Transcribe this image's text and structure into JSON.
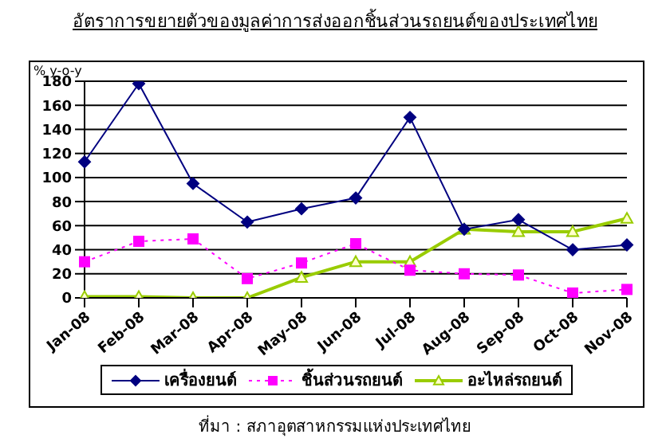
{
  "chart_data": {
    "type": "line",
    "title": "อัตราการขยายตัวของมูลค่าการส่งออกชิ้นส่วนรถยนต์ของประเทศไทย",
    "ylabel": "% y-o-y",
    "categories": [
      "Jan-08",
      "Feb-08",
      "Mar-08",
      "Apr-08",
      "May-08",
      "Jun-08",
      "Jul-08",
      "Aug-08",
      "Sep-08",
      "Oct-08",
      "Nov-08"
    ],
    "series": [
      {
        "name": "เครื่องยนต์",
        "color": "#000080",
        "marker": "diamond",
        "line_style": "solid",
        "values": [
          113,
          178,
          95,
          63,
          74,
          83,
          150,
          57,
          65,
          40,
          44
        ]
      },
      {
        "name": "ชิ้นส่วนรถยนต์",
        "color": "#ff00ff",
        "marker": "square",
        "line_style": "dotted",
        "values": [
          30,
          47,
          49,
          16,
          29,
          45,
          23,
          20,
          19,
          4,
          7
        ]
      },
      {
        "name": "อะไหล่รถยนต์",
        "color": "#99cc00",
        "marker": "triangle",
        "line_style": "solid",
        "values": [
          1,
          1,
          0,
          0,
          17,
          30,
          30,
          57,
          55,
          55,
          66
        ]
      }
    ],
    "ylim": [
      0,
      180
    ],
    "yticks": [
      0,
      20,
      40,
      60,
      80,
      100,
      120,
      140,
      160,
      180
    ],
    "grid": "y",
    "legend": "bottom",
    "annotations": [
      "ที่มา : สภาอุตสาหกรรมแห่งประเทศไทย"
    ]
  }
}
